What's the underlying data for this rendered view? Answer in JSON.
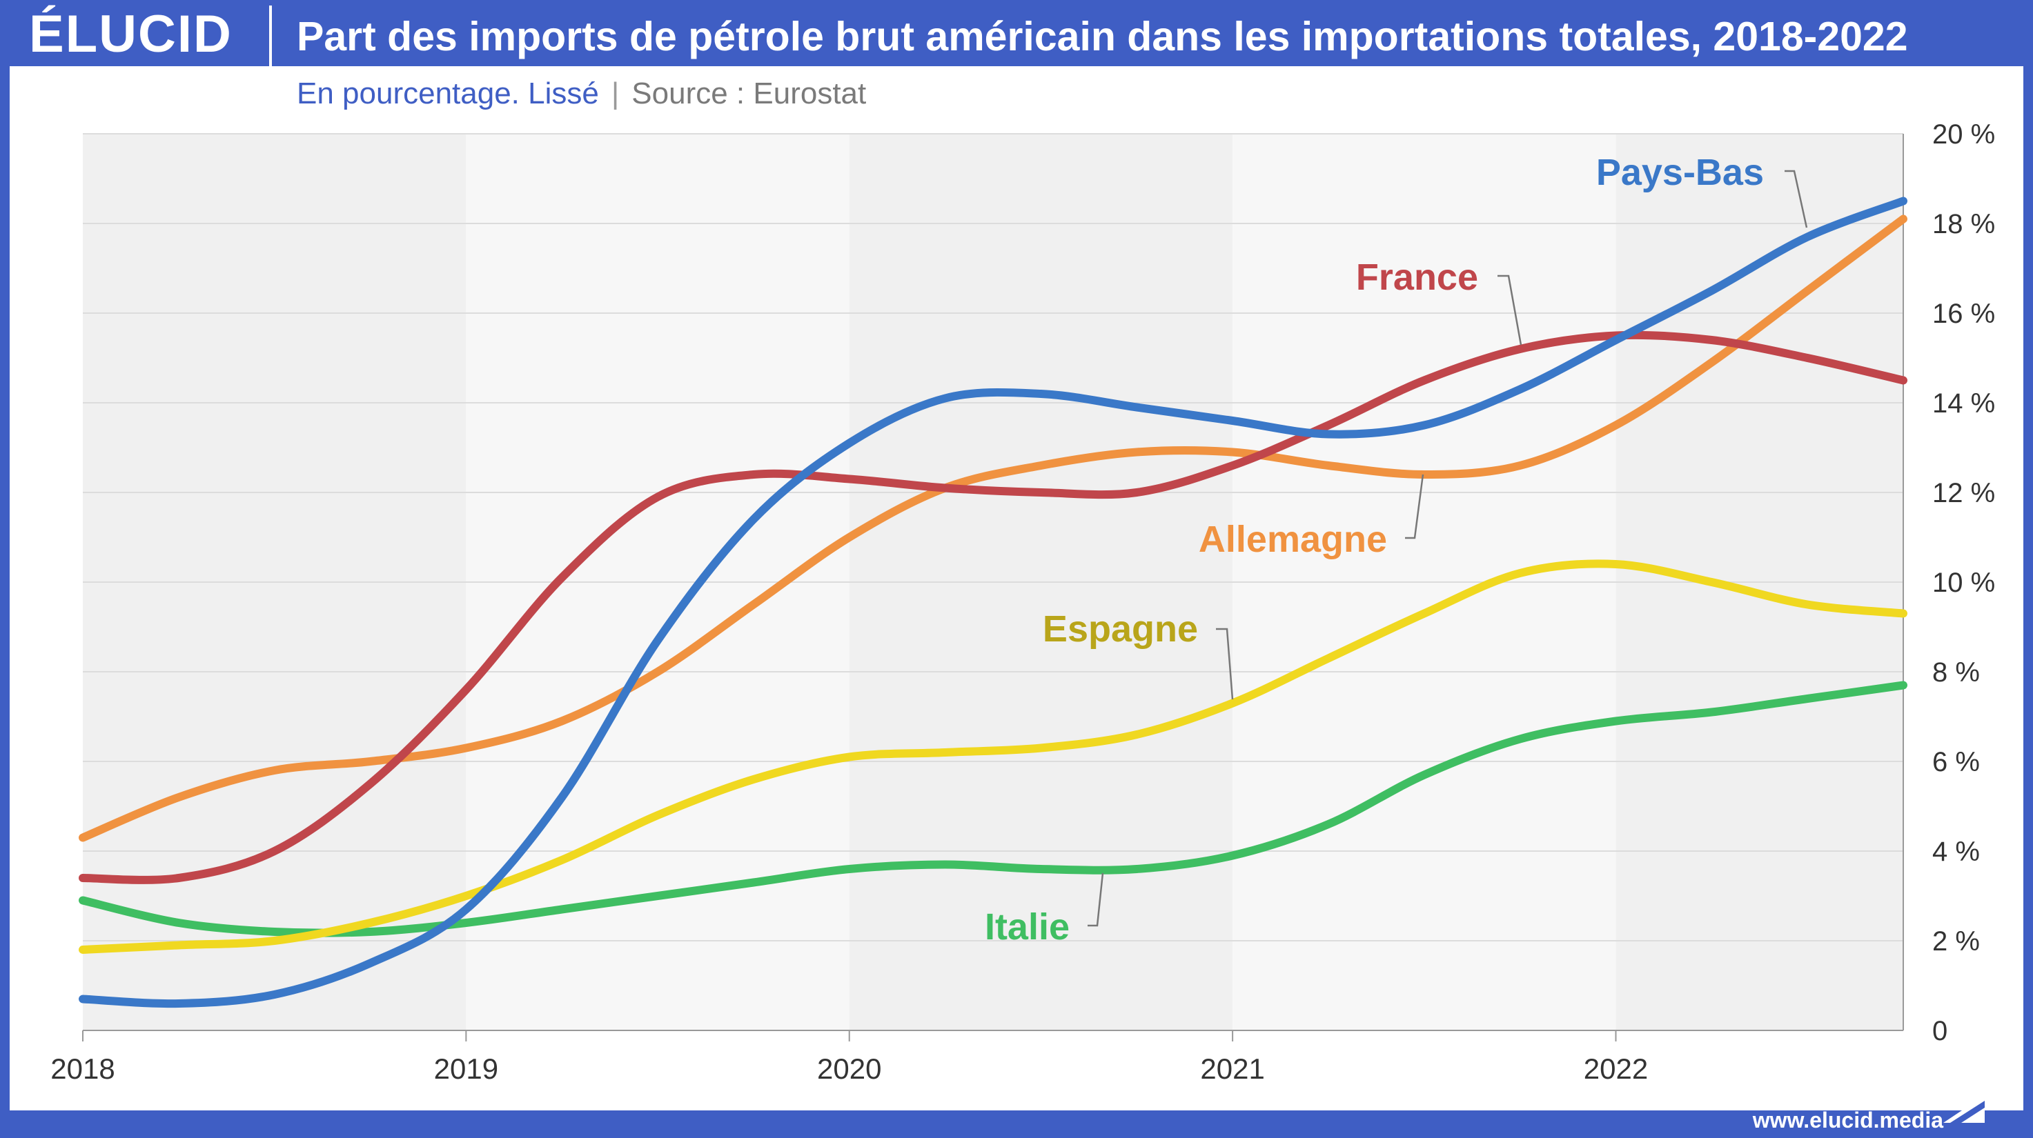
{
  "brand": {
    "logo": "ÉLUCID",
    "url": "www.elucid.media",
    "color_frame": "#3f5ec4"
  },
  "header": {
    "title": "Part des imports de pétrole brut américain dans les importations totales, 2018-2022",
    "subtitle": "En pourcentage. Lissé",
    "separator": "|",
    "source": "Source : Eurostat"
  },
  "chart_data": {
    "type": "line",
    "title": "Part des imports de pétrole brut américain dans les importations totales, 2018-2022",
    "subtitle": "En pourcentage. Lissé",
    "xlabel": "",
    "ylabel": "",
    "xlim": [
      2018,
      2022.75
    ],
    "ylim": [
      0,
      20
    ],
    "x_ticks": [
      "2018",
      "2019",
      "2020",
      "2021",
      "2022"
    ],
    "y_ticks": [
      "0",
      "2 %",
      "4 %",
      "6 %",
      "8 %",
      "10 %",
      "12 %",
      "14 %",
      "16 %",
      "18 %",
      "20 %"
    ],
    "y_tick_values": [
      0,
      2,
      4,
      6,
      8,
      10,
      12,
      14,
      16,
      18,
      20
    ],
    "y_axis_side": "right",
    "grid": "horizontal",
    "legend": "direct labels",
    "x": [
      2018.0,
      2018.25,
      2018.5,
      2018.75,
      2019.0,
      2019.25,
      2019.5,
      2019.75,
      2020.0,
      2020.25,
      2020.5,
      2020.75,
      2021.0,
      2021.25,
      2021.5,
      2021.75,
      2022.0,
      2022.25,
      2022.5,
      2022.75
    ],
    "series": [
      {
        "name": "Pays-Bas",
        "color": "#3a78c8",
        "values": [
          0.7,
          0.6,
          0.8,
          1.5,
          2.7,
          5.2,
          8.7,
          11.4,
          13.1,
          14.1,
          14.2,
          13.9,
          13.6,
          13.3,
          13.5,
          14.3,
          15.4,
          16.5,
          17.7,
          18.5
        ]
      },
      {
        "name": "France",
        "color": "#c0464b",
        "values": [
          3.4,
          3.4,
          4.0,
          5.5,
          7.6,
          10.1,
          11.9,
          12.4,
          12.3,
          12.1,
          12.0,
          12.0,
          12.6,
          13.5,
          14.5,
          15.2,
          15.5,
          15.4,
          15.0,
          14.5
        ]
      },
      {
        "name": "Allemagne",
        "color": "#f09240",
        "values": [
          4.3,
          5.2,
          5.8,
          6.0,
          6.3,
          6.9,
          8.0,
          9.5,
          11.0,
          12.1,
          12.6,
          12.9,
          12.9,
          12.6,
          12.4,
          12.6,
          13.5,
          14.9,
          16.5,
          18.1
        ]
      },
      {
        "name": "Espagne",
        "color": "#f0d820",
        "values": [
          1.8,
          1.9,
          2.0,
          2.4,
          3.0,
          3.8,
          4.8,
          5.6,
          6.1,
          6.2,
          6.3,
          6.6,
          7.3,
          8.3,
          9.3,
          10.2,
          10.4,
          10.0,
          9.5,
          9.3
        ]
      },
      {
        "name": "Italie",
        "color": "#3fbe62",
        "values": [
          2.9,
          2.4,
          2.2,
          2.2,
          2.4,
          2.7,
          3.0,
          3.3,
          3.6,
          3.7,
          3.6,
          3.6,
          3.9,
          4.6,
          5.7,
          6.5,
          6.9,
          7.1,
          7.4,
          7.7
        ]
      }
    ],
    "label_colors": {
      "Pays-Bas": "#3a78c8",
      "France": "#c0464b",
      "Allemagne": "#f09240",
      "Espagne": "#b9a51a",
      "Italie": "#3fbe62"
    }
  }
}
